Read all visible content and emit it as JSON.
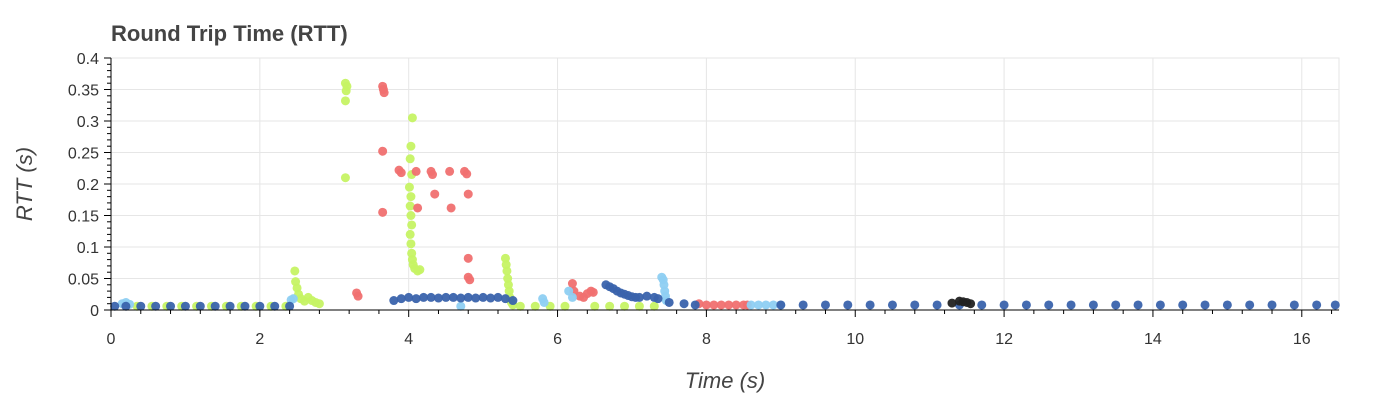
{
  "chart_data": {
    "type": "scatter",
    "title": "Round Trip Time (RTT)",
    "xlabel": "Time (s)",
    "ylabel": "RTT (s)",
    "xlim": [
      0,
      16.5
    ],
    "ylim": [
      0,
      0.4
    ],
    "grid": true,
    "x_ticks": [
      0,
      2,
      4,
      6,
      8,
      10,
      12,
      14,
      16
    ],
    "y_ticks": [
      0,
      0.05,
      0.1,
      0.15,
      0.2,
      0.25,
      0.3,
      0.35,
      0.4
    ],
    "y_tick_labels": [
      "0",
      "0.05",
      "0.1",
      "0.15",
      "0.2",
      "0.25",
      "0.3",
      "0.35",
      "0.4"
    ],
    "series": [
      {
        "color": "#c6f364",
        "points": [
          [
            0.35,
            0.006
          ],
          [
            0.55,
            0.006
          ],
          [
            0.75,
            0.006
          ],
          [
            0.95,
            0.006
          ],
          [
            1.15,
            0.006
          ],
          [
            1.35,
            0.006
          ],
          [
            1.55,
            0.006
          ],
          [
            1.75,
            0.006
          ],
          [
            1.95,
            0.006
          ],
          [
            2.15,
            0.006
          ],
          [
            2.35,
            0.006
          ],
          [
            2.47,
            0.062
          ],
          [
            2.48,
            0.045
          ],
          [
            2.5,
            0.035
          ],
          [
            2.52,
            0.025
          ],
          [
            2.55,
            0.018
          ],
          [
            2.6,
            0.014
          ],
          [
            2.65,
            0.02
          ],
          [
            2.7,
            0.015
          ],
          [
            2.75,
            0.012
          ],
          [
            2.8,
            0.01
          ],
          [
            3.15,
            0.36
          ],
          [
            3.17,
            0.355
          ],
          [
            3.16,
            0.348
          ],
          [
            3.15,
            0.332
          ],
          [
            3.15,
            0.21
          ],
          [
            4.05,
            0.305
          ],
          [
            4.03,
            0.26
          ],
          [
            4.02,
            0.24
          ],
          [
            4.04,
            0.215
          ],
          [
            4.01,
            0.195
          ],
          [
            4.03,
            0.18
          ],
          [
            4.02,
            0.165
          ],
          [
            4.03,
            0.15
          ],
          [
            4.04,
            0.135
          ],
          [
            4.02,
            0.12
          ],
          [
            4.03,
            0.105
          ],
          [
            4.04,
            0.09
          ],
          [
            4.05,
            0.08
          ],
          [
            4.06,
            0.072
          ],
          [
            4.08,
            0.066
          ],
          [
            4.12,
            0.062
          ],
          [
            4.15,
            0.064
          ],
          [
            5.3,
            0.082
          ],
          [
            5.31,
            0.072
          ],
          [
            5.32,
            0.062
          ],
          [
            5.33,
            0.05
          ],
          [
            5.34,
            0.04
          ],
          [
            5.35,
            0.03
          ],
          [
            5.36,
            0.02
          ],
          [
            5.38,
            0.012
          ],
          [
            5.4,
            0.008
          ],
          [
            5.5,
            0.006
          ],
          [
            5.7,
            0.006
          ],
          [
            5.9,
            0.006
          ],
          [
            6.1,
            0.006
          ],
          [
            6.5,
            0.006
          ],
          [
            6.7,
            0.006
          ],
          [
            6.9,
            0.006
          ],
          [
            7.1,
            0.006
          ],
          [
            7.3,
            0.006
          ]
        ]
      },
      {
        "color": "#f07070",
        "points": [
          [
            3.3,
            0.027
          ],
          [
            3.32,
            0.022
          ],
          [
            3.65,
            0.355
          ],
          [
            3.66,
            0.35
          ],
          [
            3.67,
            0.345
          ],
          [
            3.65,
            0.252
          ],
          [
            3.65,
            0.155
          ],
          [
            3.87,
            0.222
          ],
          [
            3.9,
            0.218
          ],
          [
            4.1,
            0.22
          ],
          [
            4.12,
            0.162
          ],
          [
            4.3,
            0.22
          ],
          [
            4.32,
            0.215
          ],
          [
            4.35,
            0.184
          ],
          [
            4.55,
            0.22
          ],
          [
            4.57,
            0.162
          ],
          [
            4.75,
            0.22
          ],
          [
            4.78,
            0.216
          ],
          [
            4.8,
            0.184
          ],
          [
            4.8,
            0.082
          ],
          [
            4.8,
            0.052
          ],
          [
            4.82,
            0.048
          ],
          [
            6.2,
            0.042
          ],
          [
            6.22,
            0.03
          ],
          [
            6.3,
            0.022
          ],
          [
            6.35,
            0.02
          ],
          [
            6.4,
            0.026
          ],
          [
            6.45,
            0.03
          ],
          [
            6.48,
            0.028
          ],
          [
            7.9,
            0.01
          ],
          [
            8.0,
            0.008
          ],
          [
            8.1,
            0.008
          ],
          [
            8.2,
            0.008
          ],
          [
            8.3,
            0.008
          ],
          [
            8.4,
            0.008
          ],
          [
            8.5,
            0.008
          ],
          [
            8.55,
            0.008
          ]
        ]
      },
      {
        "color": "#8ecff2",
        "points": [
          [
            0.15,
            0.01
          ],
          [
            0.2,
            0.012
          ],
          [
            0.25,
            0.009
          ],
          [
            2.42,
            0.016
          ],
          [
            2.45,
            0.018
          ],
          [
            4.7,
            0.006
          ],
          [
            5.8,
            0.018
          ],
          [
            5.82,
            0.012
          ],
          [
            6.15,
            0.03
          ],
          [
            6.2,
            0.02
          ],
          [
            7.4,
            0.052
          ],
          [
            7.42,
            0.048
          ],
          [
            7.43,
            0.04
          ],
          [
            7.44,
            0.03
          ],
          [
            7.45,
            0.022
          ],
          [
            7.46,
            0.015
          ],
          [
            8.6,
            0.008
          ],
          [
            8.7,
            0.008
          ],
          [
            8.8,
            0.008
          ],
          [
            8.9,
            0.008
          ],
          [
            9.0,
            0.008
          ]
        ]
      },
      {
        "color": "#3a63ac",
        "points": [
          [
            0.05,
            0.006
          ],
          [
            0.2,
            0.006
          ],
          [
            0.4,
            0.006
          ],
          [
            0.6,
            0.006
          ],
          [
            0.8,
            0.006
          ],
          [
            1.0,
            0.006
          ],
          [
            1.2,
            0.006
          ],
          [
            1.4,
            0.006
          ],
          [
            1.6,
            0.006
          ],
          [
            1.8,
            0.006
          ],
          [
            2.0,
            0.006
          ],
          [
            2.2,
            0.006
          ],
          [
            2.4,
            0.006
          ],
          [
            3.8,
            0.015
          ],
          [
            3.9,
            0.018
          ],
          [
            4.0,
            0.02
          ],
          [
            4.1,
            0.018
          ],
          [
            4.2,
            0.02
          ],
          [
            4.3,
            0.02
          ],
          [
            4.4,
            0.019
          ],
          [
            4.5,
            0.02
          ],
          [
            4.6,
            0.02
          ],
          [
            4.7,
            0.019
          ],
          [
            4.8,
            0.02
          ],
          [
            4.9,
            0.019
          ],
          [
            5.0,
            0.02
          ],
          [
            5.1,
            0.019
          ],
          [
            5.2,
            0.02
          ],
          [
            5.3,
            0.018
          ],
          [
            5.4,
            0.015
          ],
          [
            6.65,
            0.04
          ],
          [
            6.7,
            0.037
          ],
          [
            6.75,
            0.034
          ],
          [
            6.8,
            0.03
          ],
          [
            6.85,
            0.027
          ],
          [
            6.9,
            0.025
          ],
          [
            6.95,
            0.023
          ],
          [
            7.0,
            0.021
          ],
          [
            7.05,
            0.02
          ],
          [
            7.1,
            0.02
          ],
          [
            7.2,
            0.022
          ],
          [
            7.3,
            0.02
          ],
          [
            7.35,
            0.018
          ],
          [
            7.5,
            0.012
          ],
          [
            7.7,
            0.01
          ],
          [
            7.85,
            0.008
          ],
          [
            9.0,
            0.008
          ],
          [
            9.3,
            0.008
          ],
          [
            9.6,
            0.008
          ],
          [
            9.9,
            0.008
          ],
          [
            10.2,
            0.008
          ],
          [
            10.5,
            0.008
          ],
          [
            10.8,
            0.008
          ],
          [
            11.1,
            0.008
          ],
          [
            11.4,
            0.008
          ],
          [
            11.7,
            0.008
          ],
          [
            12.0,
            0.008
          ],
          [
            12.3,
            0.008
          ],
          [
            12.6,
            0.008
          ],
          [
            12.9,
            0.008
          ],
          [
            13.2,
            0.008
          ],
          [
            13.5,
            0.008
          ],
          [
            13.8,
            0.008
          ],
          [
            14.1,
            0.008
          ],
          [
            14.4,
            0.008
          ],
          [
            14.7,
            0.008
          ],
          [
            15.0,
            0.008
          ],
          [
            15.3,
            0.008
          ],
          [
            15.6,
            0.008
          ],
          [
            15.9,
            0.008
          ],
          [
            16.2,
            0.008
          ],
          [
            16.45,
            0.008
          ]
        ]
      },
      {
        "color": "#222222",
        "points": [
          [
            11.3,
            0.011
          ],
          [
            11.4,
            0.014
          ],
          [
            11.45,
            0.013
          ],
          [
            11.5,
            0.012
          ],
          [
            11.55,
            0.01
          ]
        ]
      }
    ]
  }
}
